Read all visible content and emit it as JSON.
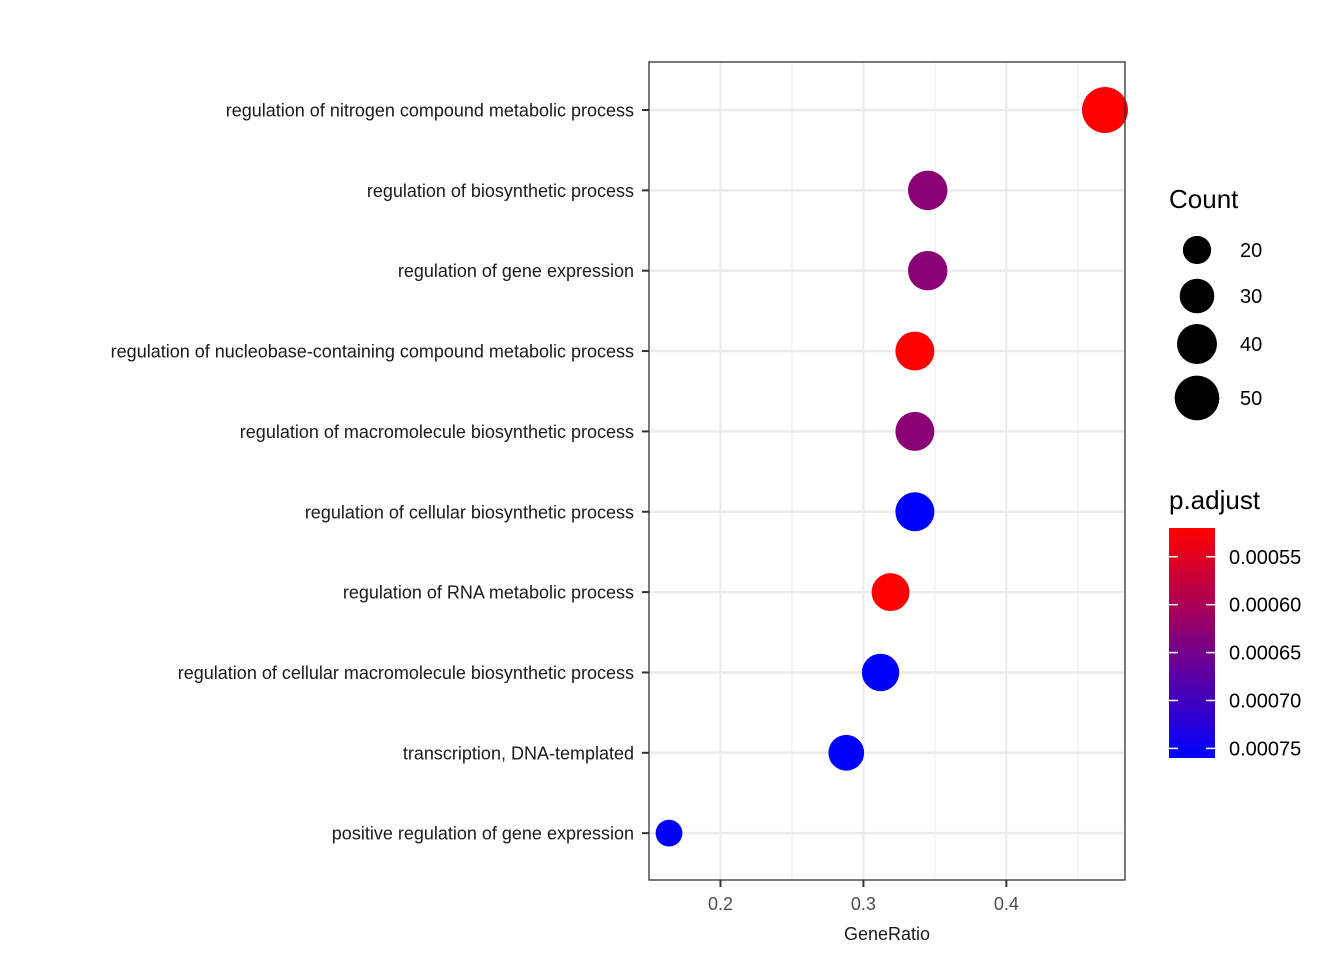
{
  "chart_data": {
    "type": "scatter",
    "xlabel": "GeneRatio",
    "x_ticks": [
      "0.2",
      "0.3",
      "0.4"
    ],
    "x_tick_values": [
      0.2,
      0.3,
      0.4
    ],
    "xlim": [
      0.15,
      0.483
    ],
    "grid": true,
    "categories": [
      "regulation of nitrogen compound metabolic process",
      "regulation of biosynthetic process",
      "regulation of gene expression",
      "regulation of nucleobase-containing compound metabolic process",
      "regulation of macromolecule biosynthetic process",
      "regulation of cellular biosynthetic process",
      "regulation of RNA metabolic process",
      "regulation of cellular macromolecule biosynthetic process",
      "transcription, DNA-templated",
      "positive regulation of gene expression"
    ],
    "points": [
      {
        "term": "regulation of nitrogen compound metabolic process",
        "gene_ratio": 0.469,
        "count": 53,
        "p_adjust": 0.00052
      },
      {
        "term": "regulation of biosynthetic process",
        "gene_ratio": 0.345,
        "count": 39,
        "p_adjust": 0.00063
      },
      {
        "term": "regulation of gene expression",
        "gene_ratio": 0.345,
        "count": 39,
        "p_adjust": 0.00063
      },
      {
        "term": "regulation of nucleobase-containing compound metabolic process",
        "gene_ratio": 0.336,
        "count": 38,
        "p_adjust": 0.00052
      },
      {
        "term": "regulation of macromolecule biosynthetic process",
        "gene_ratio": 0.336,
        "count": 38,
        "p_adjust": 0.00063
      },
      {
        "term": "regulation of cellular biosynthetic process",
        "gene_ratio": 0.336,
        "count": 38,
        "p_adjust": 0.00076
      },
      {
        "term": "regulation of RNA metabolic process",
        "gene_ratio": 0.319,
        "count": 36,
        "p_adjust": 0.00052
      },
      {
        "term": "regulation of cellular macromolecule biosynthetic process",
        "gene_ratio": 0.312,
        "count": 35,
        "p_adjust": 0.00076
      },
      {
        "term": "transcription, DNA-templated",
        "gene_ratio": 0.288,
        "count": 32,
        "p_adjust": 0.00076
      },
      {
        "term": "positive regulation of gene expression",
        "gene_ratio": 0.164,
        "count": 18,
        "p_adjust": 0.00076
      }
    ],
    "legend_size": {
      "title": "Count",
      "entries": [
        {
          "label": "20",
          "value": 20
        },
        {
          "label": "30",
          "value": 30
        },
        {
          "label": "40",
          "value": 40
        },
        {
          "label": "50",
          "value": 50
        }
      ]
    },
    "legend_color": {
      "title": "p.adjust",
      "low_color": "#ff0000",
      "high_color": "#0000ff",
      "range": [
        0.00052,
        0.00076
      ],
      "ticks": [
        {
          "label": "0.00055",
          "value": 0.00055
        },
        {
          "label": "0.00060",
          "value": 0.0006
        },
        {
          "label": "0.00065",
          "value": 0.00065
        },
        {
          "label": "0.00070",
          "value": 0.0007
        },
        {
          "label": "0.00075",
          "value": 0.00075
        }
      ]
    },
    "legend_placement": "right"
  }
}
